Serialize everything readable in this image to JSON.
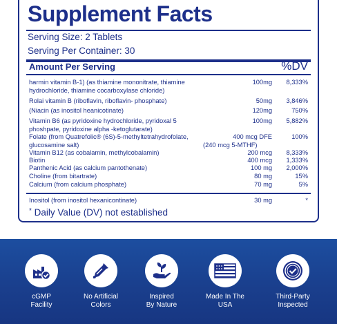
{
  "facts": {
    "title": "Supplement Facts",
    "serving_size": "Serving Size: 2 Tablets",
    "serving_per_container": "Serving Per Container: 30",
    "header_amount": "Amount Per Serving",
    "header_dv": "%DV",
    "rows": [
      {
        "name": "harmin vitamin B-1) (as thiamine mononitrate, thiamine hydrochloride, thiamine cocarboxylase chloride)",
        "amount": "100mg",
        "dv": "8,333%"
      },
      {
        "name": "Rolai vitamin B (riboflavin, riboflavin- phosphate)",
        "amount": "50mg",
        "dv": "3,846%"
      },
      {
        "name": "(Niacin (as inositol heanicotinate)",
        "amount": "120mg",
        "dv": "750%"
      },
      {
        "name": "Vitamin B6 (as pyridoxine hydrochloride, pyridoxal 5 phoshpate, pyridoxine alpha -ketoglutarate)",
        "amount": "100mg",
        "dv": "5,882%"
      },
      {
        "name": "Folate (from Quatrefolic® (6S)-5-methyltetrahydrofolate, glucosamine salt)",
        "amount": "400 mcg DFE",
        "amount_sub": "(240 mcg 5-MTHF)",
        "dv": "100%"
      },
      {
        "name": "Vitamin B12 (as cobalamin, methylcobalamin)",
        "amount": "200 mcg",
        "dv": "8,333%"
      },
      {
        "name": "Biotin",
        "amount": "400 mcg",
        "dv": "1,333%"
      },
      {
        "name": "Panthenic Acid (as calcium pantothenate)",
        "amount": "100 mg",
        "dv": "2,000%"
      },
      {
        "name": "Choline (from bitartrate)",
        "amount": "80 mg",
        "dv": "15%"
      },
      {
        "name": "Calcium (from calcium phosphate)",
        "amount": "70 mg",
        "dv": "5%"
      }
    ],
    "inositol": {
      "name": "Inositol (from inositol hexanicontinate)",
      "amount": "30 mg",
      "dv": "*"
    },
    "footnote_star": "*",
    "footnote": "Daily Value (DV) not established"
  },
  "colors": {
    "brand_navy": "#1d2f8a",
    "band_blue": "#1a3f8d"
  },
  "badges": [
    {
      "icon": "factory-check-icon",
      "line1": "cGMP",
      "line2": "Facility"
    },
    {
      "icon": "no-dropper-icon",
      "line1": "No Artificial",
      "line2": "Colors"
    },
    {
      "icon": "plant-hand-icon",
      "line1": "Inspired",
      "line2": "By Nature"
    },
    {
      "icon": "usa-flag-icon",
      "line1": "Made In The",
      "line2": "USA"
    },
    {
      "icon": "certified-seal-icon",
      "line1": "Third-Party",
      "line2": "Inspected"
    }
  ]
}
